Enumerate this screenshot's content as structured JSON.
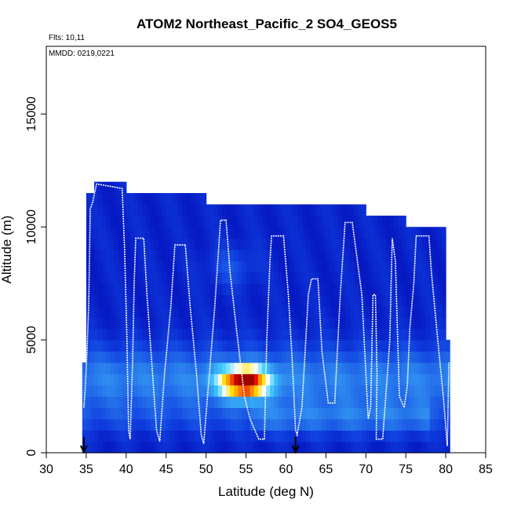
{
  "chart_data": {
    "type": "heatmap",
    "title": "ATOM2 Northeast_Pacific_2 SO4_GEOS5",
    "annotations": {
      "flights": "Flts: 10,11",
      "dates": "MMDD: 0219,0221"
    },
    "xlabel": "Latitude (deg N)",
    "ylabel": "Altitude (m)",
    "xlim": [
      30,
      85
    ],
    "ylim": [
      0,
      18000
    ],
    "x_ticks": [
      "30",
      "35",
      "40",
      "45",
      "50",
      "55",
      "60",
      "65",
      "70",
      "75",
      "80",
      "85"
    ],
    "y_ticks": [
      "0",
      "5000",
      "10000",
      "15000"
    ],
    "x_tick_values": [
      30,
      35,
      40,
      45,
      50,
      55,
      60,
      65,
      70,
      75,
      80,
      85
    ],
    "y_tick_values": [
      0,
      5000,
      10000,
      15000
    ],
    "grid": false,
    "colormap": [
      "#0000b0",
      "#1040e0",
      "#2f8cf0",
      "#3fd0ff",
      "#ffffff",
      "#ffe000",
      "#ff8000",
      "#e00000",
      "#a00000"
    ],
    "markers": [
      {
        "x": 34.7,
        "label": "arrow"
      },
      {
        "x": 61.2,
        "label": "arrow"
      }
    ],
    "flight_track": [
      [
        34.7,
        2000
      ],
      [
        34.9,
        3000
      ],
      [
        35.1,
        4500
      ],
      [
        35.3,
        6500
      ],
      [
        35.4,
        8500
      ],
      [
        35.5,
        10800
      ],
      [
        35.8,
        11100
      ],
      [
        36.3,
        11900
      ],
      [
        38.0,
        11800
      ],
      [
        39.5,
        11700
      ],
      [
        39.8,
        9000
      ],
      [
        40.1,
        5000
      ],
      [
        40.3,
        1000
      ],
      [
        40.5,
        600
      ],
      [
        40.8,
        4000
      ],
      [
        41.0,
        7500
      ],
      [
        41.2,
        9500
      ],
      [
        42.2,
        9500
      ],
      [
        42.6,
        7000
      ],
      [
        43.2,
        4000
      ],
      [
        43.8,
        1000
      ],
      [
        44.2,
        500
      ],
      [
        44.8,
        3500
      ],
      [
        45.6,
        6500
      ],
      [
        46.1,
        9200
      ],
      [
        47.4,
        9200
      ],
      [
        48.0,
        6500
      ],
      [
        48.8,
        3500
      ],
      [
        49.4,
        800
      ],
      [
        49.7,
        400
      ],
      [
        50.3,
        3000
      ],
      [
        51.1,
        6500
      ],
      [
        51.8,
        10300
      ],
      [
        52.5,
        10300
      ],
      [
        53.0,
        8000
      ],
      [
        53.8,
        5500
      ],
      [
        54.8,
        2500
      ],
      [
        55.5,
        1500
      ],
      [
        56.6,
        600
      ],
      [
        57.3,
        600
      ],
      [
        57.6,
        5000
      ],
      [
        58.0,
        8500
      ],
      [
        58.2,
        9600
      ],
      [
        59.7,
        9600
      ],
      [
        60.3,
        7000
      ],
      [
        60.8,
        4000
      ],
      [
        61.2,
        1000
      ],
      [
        61.4,
        800
      ],
      [
        62.0,
        2000
      ],
      [
        62.4,
        4500
      ],
      [
        62.8,
        7000
      ],
      [
        63.2,
        7700
      ],
      [
        64.0,
        7700
      ],
      [
        64.5,
        4500
      ],
      [
        65.3,
        2200
      ],
      [
        66.1,
        2200
      ],
      [
        66.8,
        7000
      ],
      [
        67.4,
        10200
      ],
      [
        68.3,
        10200
      ],
      [
        69.5,
        7000
      ],
      [
        70.0,
        3500
      ],
      [
        70.3,
        1500
      ],
      [
        70.6,
        2000
      ],
      [
        70.9,
        7000
      ],
      [
        71.2,
        7000
      ],
      [
        71.4,
        3500
      ],
      [
        71.3,
        600
      ],
      [
        72.1,
        600
      ],
      [
        72.5,
        2500
      ],
      [
        73.0,
        5000
      ],
      [
        73.3,
        9500
      ],
      [
        73.7,
        8500
      ],
      [
        74.2,
        2500
      ],
      [
        74.8,
        2000
      ],
      [
        75.2,
        3000
      ],
      [
        75.5,
        5500
      ],
      [
        76.0,
        7500
      ],
      [
        76.3,
        9600
      ],
      [
        77.9,
        9600
      ],
      [
        78.2,
        8000
      ],
      [
        79.0,
        5000
      ],
      [
        79.7,
        2500
      ],
      [
        80.2,
        300
      ],
      [
        80.4,
        4000
      ]
    ]
  }
}
